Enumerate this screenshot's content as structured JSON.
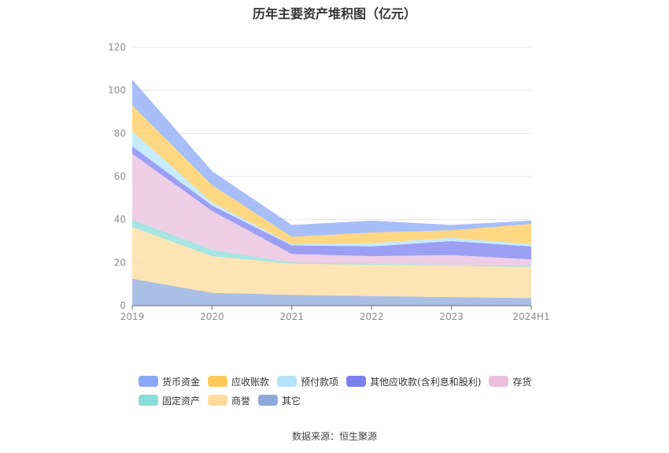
{
  "chart_data": {
    "type": "area",
    "stacked": true,
    "title": "历年主要资产堆积图（亿元）",
    "xlabel": "",
    "ylabel": "",
    "categories": [
      "2019",
      "2020",
      "2021",
      "2022",
      "2023",
      "2024H1"
    ],
    "ylim": [
      0,
      120
    ],
    "yticks": [
      0,
      20,
      40,
      60,
      80,
      100,
      120
    ],
    "grid": true,
    "legend_position": "bottom",
    "series": [
      {
        "name": "其它",
        "color": "#8eaadb",
        "values": [
          12.5,
          6.0,
          5.0,
          4.5,
          4.0,
          3.5
        ]
      },
      {
        "name": "商誉",
        "color": "#ffdb9c",
        "values": [
          24.0,
          17.0,
          14.5,
          14.5,
          14.5,
          14.5
        ]
      },
      {
        "name": "固定资产",
        "color": "#8adcd8",
        "values": [
          3.5,
          3.0,
          0.5,
          0.5,
          0.5,
          0.5
        ]
      },
      {
        "name": "存货",
        "color": "#eabfde",
        "values": [
          30.5,
          18.0,
          4.0,
          3.5,
          4.5,
          3.0
        ]
      },
      {
        "name": "其他应收款(含利息和股利)",
        "color": "#7b7ff0",
        "values": [
          3.5,
          2.5,
          4.0,
          4.5,
          6.5,
          6.0
        ]
      },
      {
        "name": "预付款项",
        "color": "#b3e4fb",
        "values": [
          7.0,
          1.5,
          0.5,
          1.5,
          1.5,
          1.0
        ]
      },
      {
        "name": "应收账款",
        "color": "#fec95a",
        "values": [
          12.0,
          8.0,
          3.5,
          5.0,
          3.5,
          9.5
        ]
      },
      {
        "name": "货币资金",
        "color": "#8aa8f7",
        "values": [
          12.0,
          6.5,
          5.5,
          5.5,
          2.5,
          1.5
        ]
      }
    ],
    "legend_order": [
      "货币资金",
      "应收账款",
      "预付款项",
      "其他应收款(含利息和股利)",
      "存货",
      "固定资产",
      "商誉",
      "其它"
    ]
  },
  "source": "数据来源：恒生聚源"
}
